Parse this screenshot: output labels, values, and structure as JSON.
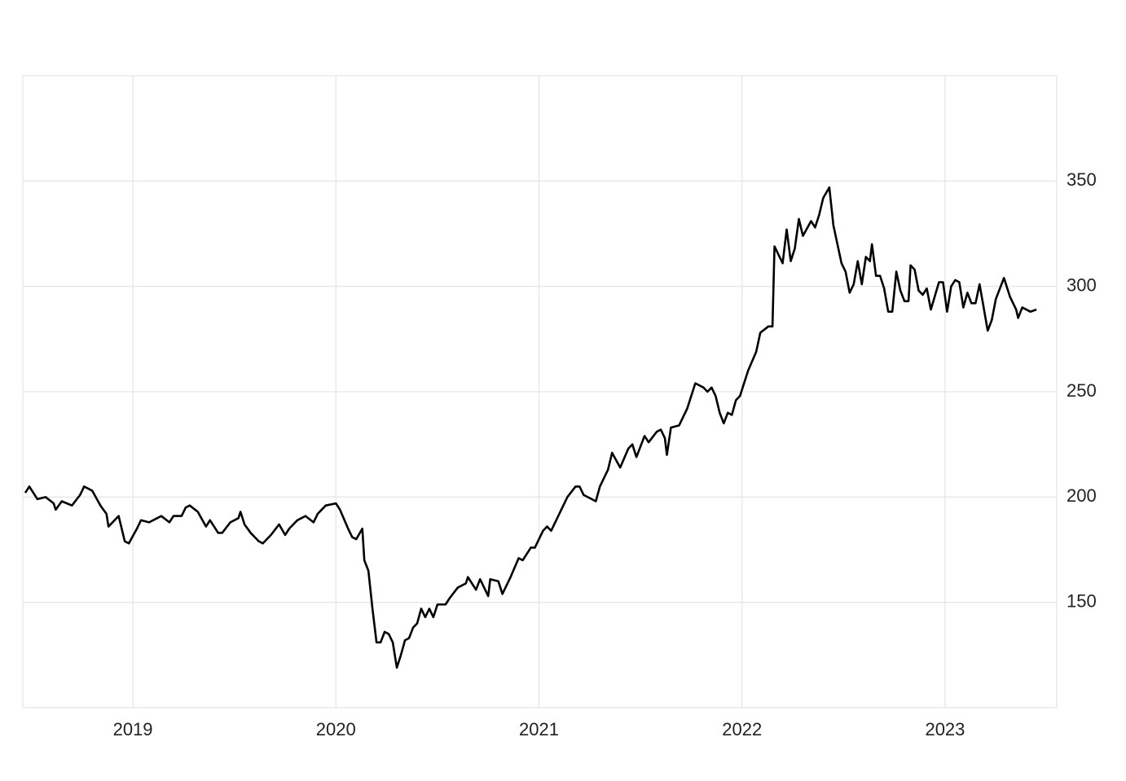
{
  "chart_data": {
    "type": "line",
    "color": "#000000",
    "grid": true,
    "y_axis_side": "right",
    "xlim": [
      2018.458,
      2023.55
    ],
    "xticks": [
      2019,
      2020,
      2021,
      2022,
      2023
    ],
    "ylim": [
      100,
      400
    ],
    "yticks": [
      150,
      200,
      250,
      300,
      350
    ],
    "x": [
      2018.47,
      2018.49,
      2018.53,
      2018.57,
      2018.61,
      2018.62,
      2018.65,
      2018.7,
      2018.74,
      2018.76,
      2018.8,
      2018.84,
      2018.87,
      2018.88,
      2018.93,
      2018.96,
      2018.98,
      2019.02,
      2019.04,
      2019.08,
      2019.12,
      2019.14,
      2019.18,
      2019.2,
      2019.24,
      2019.26,
      2019.28,
      2019.32,
      2019.36,
      2019.38,
      2019.42,
      2019.44,
      2019.48,
      2019.52,
      2019.53,
      2019.55,
      2019.58,
      2019.62,
      2019.64,
      2019.68,
      2019.72,
      2019.75,
      2019.77,
      2019.81,
      2019.85,
      2019.89,
      2019.91,
      2019.95,
      2020.0,
      2020.02,
      2020.06,
      2020.08,
      2020.1,
      2020.13,
      2020.14,
      2020.16,
      2020.18,
      2020.2,
      2020.22,
      2020.24,
      2020.26,
      2020.28,
      2020.3,
      2020.32,
      2020.34,
      2020.36,
      2020.38,
      2020.4,
      2020.42,
      2020.44,
      2020.46,
      2020.48,
      2020.5,
      2020.54,
      2020.56,
      2020.6,
      2020.64,
      2020.65,
      2020.69,
      2020.71,
      2020.75,
      2020.76,
      2020.8,
      2020.82,
      2020.86,
      2020.9,
      2020.92,
      2020.96,
      2020.98,
      2021.02,
      2021.04,
      2021.06,
      2021.1,
      2021.14,
      2021.18,
      2021.2,
      2021.22,
      2021.28,
      2021.3,
      2021.34,
      2021.36,
      2021.4,
      2021.44,
      2021.46,
      2021.48,
      2021.52,
      2021.54,
      2021.58,
      2021.6,
      2021.62,
      2021.63,
      2021.65,
      2021.69,
      2021.73,
      2021.77,
      2021.81,
      2021.83,
      2021.85,
      2021.87,
      2021.89,
      2021.91,
      2021.93,
      2021.95,
      2021.97,
      2021.99,
      2022.03,
      2022.07,
      2022.09,
      2022.13,
      2022.15,
      2022.16,
      2022.2,
      2022.22,
      2022.24,
      2022.26,
      2022.28,
      2022.3,
      2022.34,
      2022.36,
      2022.38,
      2022.4,
      2022.43,
      2022.45,
      2022.47,
      2022.49,
      2022.51,
      2022.53,
      2022.55,
      2022.57,
      2022.59,
      2022.61,
      2022.63,
      2022.64,
      2022.66,
      2022.68,
      2022.7,
      2022.72,
      2022.74,
      2022.76,
      2022.78,
      2022.8,
      2022.82,
      2022.83,
      2022.85,
      2022.87,
      2022.89,
      2022.91,
      2022.93,
      2022.97,
      2022.99,
      2023.01,
      2023.03,
      2023.05,
      2023.07,
      2023.09,
      2023.11,
      2023.13,
      2023.15,
      2023.17,
      2023.19,
      2023.21,
      2023.23,
      2023.25,
      2023.29,
      2023.31,
      2023.32,
      2023.35,
      2023.36,
      2023.38,
      2023.42,
      2023.45
    ],
    "values": [
      202,
      205,
      199,
      200,
      197,
      194,
      198,
      196,
      201,
      205,
      203,
      196,
      192,
      186,
      191,
      179,
      178,
      185,
      189,
      188,
      190,
      191,
      188,
      191,
      191,
      195,
      196,
      193,
      186,
      189,
      183,
      183,
      188,
      190,
      193,
      187,
      183,
      179,
      178,
      182,
      187,
      182,
      185,
      189,
      191,
      188,
      192,
      196,
      197,
      194,
      185,
      181,
      180,
      185,
      170,
      165,
      147,
      131,
      131,
      136,
      135,
      131,
      119,
      125,
      132,
      133,
      138,
      140,
      147,
      143,
      147,
      143,
      149,
      149,
      152,
      157,
      159,
      162,
      156,
      161,
      153,
      161,
      160,
      154,
      162,
      171,
      170,
      176,
      176,
      184,
      186,
      184,
      192,
      200,
      205,
      205,
      201,
      198,
      205,
      213,
      221,
      214,
      223,
      225,
      219,
      229,
      226,
      231,
      232,
      228,
      220,
      233,
      234,
      242,
      254,
      252,
      250,
      252,
      248,
      240,
      235,
      240,
      239,
      246,
      248,
      260,
      269,
      278,
      281,
      281,
      319,
      311,
      327,
      312,
      318,
      332,
      324,
      331,
      328,
      334,
      342,
      347,
      329,
      320,
      311,
      307,
      297,
      301,
      312,
      301,
      314,
      312,
      320,
      305,
      305,
      299,
      288,
      288,
      307,
      298,
      293,
      293,
      310,
      308,
      298,
      296,
      299,
      289,
      302,
      302,
      288,
      300,
      303,
      302,
      290,
      297,
      292,
      292,
      301,
      290,
      279,
      284,
      294,
      304,
      298,
      295,
      289,
      285,
      290,
      288,
      289
    ]
  }
}
